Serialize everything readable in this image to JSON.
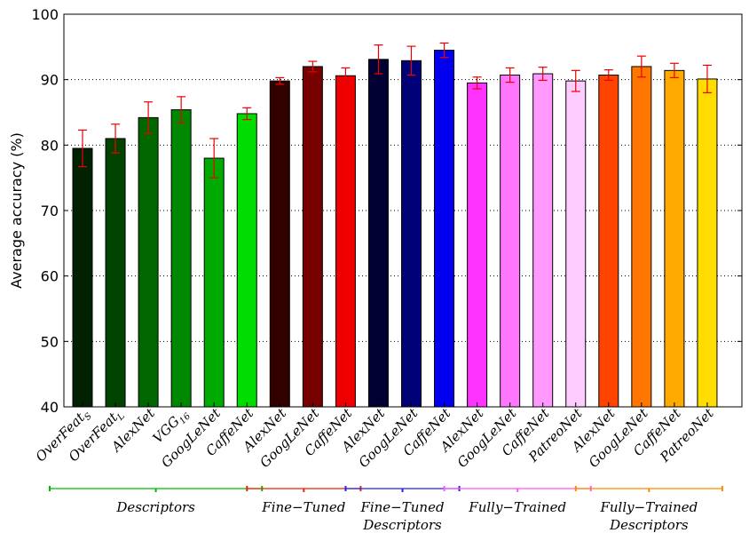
{
  "chart_data": {
    "type": "bar",
    "ylabel": "Average accuracy (%)",
    "ylim": [
      40,
      100
    ],
    "yticks": [
      40,
      50,
      60,
      70,
      80,
      90,
      100
    ],
    "grid": "horizontal dotted",
    "bars": [
      {
        "label": "OverFeat",
        "sub": "S",
        "value": 79.5,
        "err": 2.8,
        "color": "#002200"
      },
      {
        "label": "OverFeat",
        "sub": "L",
        "value": 81.0,
        "err": 2.2,
        "color": "#004400"
      },
      {
        "label": "AlexNet",
        "value": 84.2,
        "err": 2.4,
        "color": "#006600"
      },
      {
        "label": "VGG",
        "sub": "16",
        "value": 85.4,
        "err": 2.0,
        "color": "#008800"
      },
      {
        "label": "GoogLeNet",
        "value": 78.0,
        "err": 3.0,
        "color": "#00aa00"
      },
      {
        "label": "CaffeNet",
        "value": 84.8,
        "err": 0.9,
        "color": "#00dd00"
      },
      {
        "label": "AlexNet",
        "value": 89.8,
        "err": 0.5,
        "color": "#330000"
      },
      {
        "label": "GoogLeNet",
        "value": 92.0,
        "err": 0.8,
        "color": "#770000"
      },
      {
        "label": "CaffeNet",
        "value": 90.6,
        "err": 1.2,
        "color": "#ee0000"
      },
      {
        "label": "AlexNet",
        "value": 93.1,
        "err": 2.2,
        "color": "#000033"
      },
      {
        "label": "GoogLeNet",
        "value": 92.9,
        "err": 2.2,
        "color": "#000077"
      },
      {
        "label": "CaffeNet",
        "value": 94.5,
        "err": 1.1,
        "color": "#0000ee"
      },
      {
        "label": "AlexNet",
        "value": 89.5,
        "err": 0.9,
        "color": "#ff33ff"
      },
      {
        "label": "GoogLeNet",
        "value": 90.7,
        "err": 1.1,
        "color": "#ff77ff"
      },
      {
        "label": "CaffeNet",
        "value": 90.9,
        "err": 1.0,
        "color": "#ff99ff"
      },
      {
        "label": "PatreoNet",
        "value": 89.8,
        "err": 1.6,
        "color": "#ffccff"
      },
      {
        "label": "AlexNet",
        "value": 90.7,
        "err": 0.8,
        "color": "#ff4400"
      },
      {
        "label": "GoogLeNet",
        "value": 92.0,
        "err": 1.6,
        "color": "#ff7700"
      },
      {
        "label": "CaffeNet",
        "value": 91.4,
        "err": 1.1,
        "color": "#ffaa00"
      },
      {
        "label": "PatreoNet",
        "value": 90.1,
        "err": 2.1,
        "color": "#ffdd00"
      }
    ],
    "groups": [
      {
        "lines": [
          "Descriptors"
        ],
        "color": "#00bb00",
        "from": 0,
        "to": 5
      },
      {
        "lines": [
          "Fine−Tuned"
        ],
        "color": "#ee2200",
        "from": 6,
        "to": 8
      },
      {
        "lines": [
          "Fine−Tuned",
          "Descriptors"
        ],
        "color": "#2222ee",
        "from": 9,
        "to": 11
      },
      {
        "lines": [
          "Fully−Trained"
        ],
        "color": "#ff55ff",
        "from": 12,
        "to": 15
      },
      {
        "lines": [
          "Fully−Trained",
          "Descriptors"
        ],
        "color": "#ff8800",
        "from": 16,
        "to": 19
      }
    ],
    "error_color": "#ee0000"
  }
}
